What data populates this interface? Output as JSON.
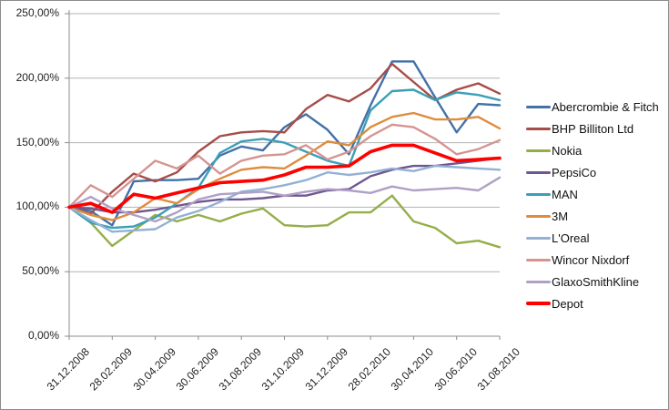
{
  "window": {
    "background": "#ffffff",
    "border_color": "#8c8c8c"
  },
  "chart_data": {
    "type": "line",
    "title": "",
    "xlabel": "",
    "ylabel": "",
    "grid": "horizontal-only",
    "legend_position": "right",
    "ylim": [
      0,
      250
    ],
    "y_tick_values": [
      0,
      50,
      100,
      150,
      200,
      250
    ],
    "y_tick_labels": [
      "0,00%",
      "50,00%",
      "100,00%",
      "150,00%",
      "200,00%",
      "250,00%"
    ],
    "x_tick_labels_shown": [
      "31.12.2008",
      "28.02.2009",
      "30.04.2009",
      "30.06.2009",
      "31.08.2009",
      "31.10.2009",
      "31.12.2009",
      "28.02.2010",
      "30.04.2010",
      "30.06.2010",
      "31.08.2010"
    ],
    "x_categories": [
      "31.12.2008",
      "31.01.2009",
      "28.02.2009",
      "31.03.2009",
      "30.04.2009",
      "31.05.2009",
      "30.06.2009",
      "31.07.2009",
      "31.08.2009",
      "30.09.2009",
      "31.10.2009",
      "30.11.2009",
      "31.12.2009",
      "31.01.2010",
      "28.02.2010",
      "31.03.2010",
      "30.04.2010",
      "31.05.2010",
      "30.06.2010",
      "31.07.2010",
      "31.08.2010"
    ],
    "x_label_every": 2,
    "unit": "percent",
    "axis_color": "#8c8c8c",
    "gridline_color": "#b3b3b3",
    "series": [
      {
        "name": "Abercrombie & Fitch",
        "color": "#4271a8",
        "thick": false,
        "values": [
          100,
          97,
          86,
          120,
          121,
          121,
          122,
          140,
          147,
          144,
          162,
          172,
          160,
          141,
          179,
          213,
          213,
          185,
          158,
          180,
          179
        ]
      },
      {
        "name": "BHP Billiton Ltd",
        "color": "#a64d48",
        "thick": false,
        "values": [
          100,
          95,
          112,
          126,
          120,
          127,
          143,
          155,
          158,
          159,
          158,
          176,
          187,
          182,
          192,
          211,
          197,
          183,
          191,
          196,
          188
        ]
      },
      {
        "name": "Nokia",
        "color": "#94ae4a",
        "thick": false,
        "values": [
          100,
          88,
          70,
          82,
          94,
          89,
          94,
          89,
          95,
          99,
          86,
          85,
          86,
          96,
          96,
          109,
          89,
          84,
          72,
          74,
          69
        ]
      },
      {
        "name": "PepsiCo",
        "color": "#6f5691",
        "thick": false,
        "values": [
          100,
          99,
          96,
          96,
          98,
          101,
          104,
          106,
          106,
          107,
          109,
          109,
          113,
          114,
          124,
          129,
          132,
          132,
          134,
          136,
          138
        ]
      },
      {
        "name": "MAN",
        "color": "#3c9fb8",
        "thick": false,
        "values": [
          100,
          88,
          84,
          85,
          92,
          103,
          115,
          142,
          151,
          153,
          150,
          143,
          136,
          132,
          175,
          190,
          191,
          183,
          189,
          187,
          183
        ]
      },
      {
        "name": "3M",
        "color": "#de8c3d",
        "thick": false,
        "values": [
          100,
          94,
          90,
          96,
          107,
          103,
          114,
          122,
          129,
          131,
          130,
          140,
          151,
          148,
          162,
          170,
          173,
          168,
          168,
          170,
          161
        ]
      },
      {
        "name": "L'Oreal",
        "color": "#93b1d5",
        "thick": false,
        "values": [
          100,
          90,
          81,
          82,
          83,
          92,
          97,
          104,
          112,
          114,
          117,
          121,
          127,
          125,
          127,
          130,
          128,
          132,
          131,
          130,
          129
        ]
      },
      {
        "name": "Wincor Nixdorf",
        "color": "#d49592",
        "thick": false,
        "values": [
          100,
          117,
          108,
          122,
          136,
          130,
          140,
          126,
          136,
          140,
          141,
          148,
          137,
          143,
          155,
          164,
          162,
          153,
          141,
          145,
          152
        ]
      },
      {
        "name": "GlaxoSmithKline",
        "color": "#afa0c5",
        "thick": false,
        "values": [
          100,
          108,
          99,
          94,
          89,
          96,
          106,
          110,
          111,
          112,
          109,
          112,
          114,
          113,
          111,
          116,
          113,
          114,
          115,
          113,
          123
        ]
      },
      {
        "name": "Depot",
        "color": "#fe0000",
        "thick": true,
        "values": [
          100,
          103,
          96,
          110,
          107,
          111,
          115,
          119,
          120,
          121,
          125,
          131,
          131,
          132,
          143,
          148,
          148,
          142,
          136,
          137,
          138
        ]
      }
    ]
  },
  "layout_note": ""
}
